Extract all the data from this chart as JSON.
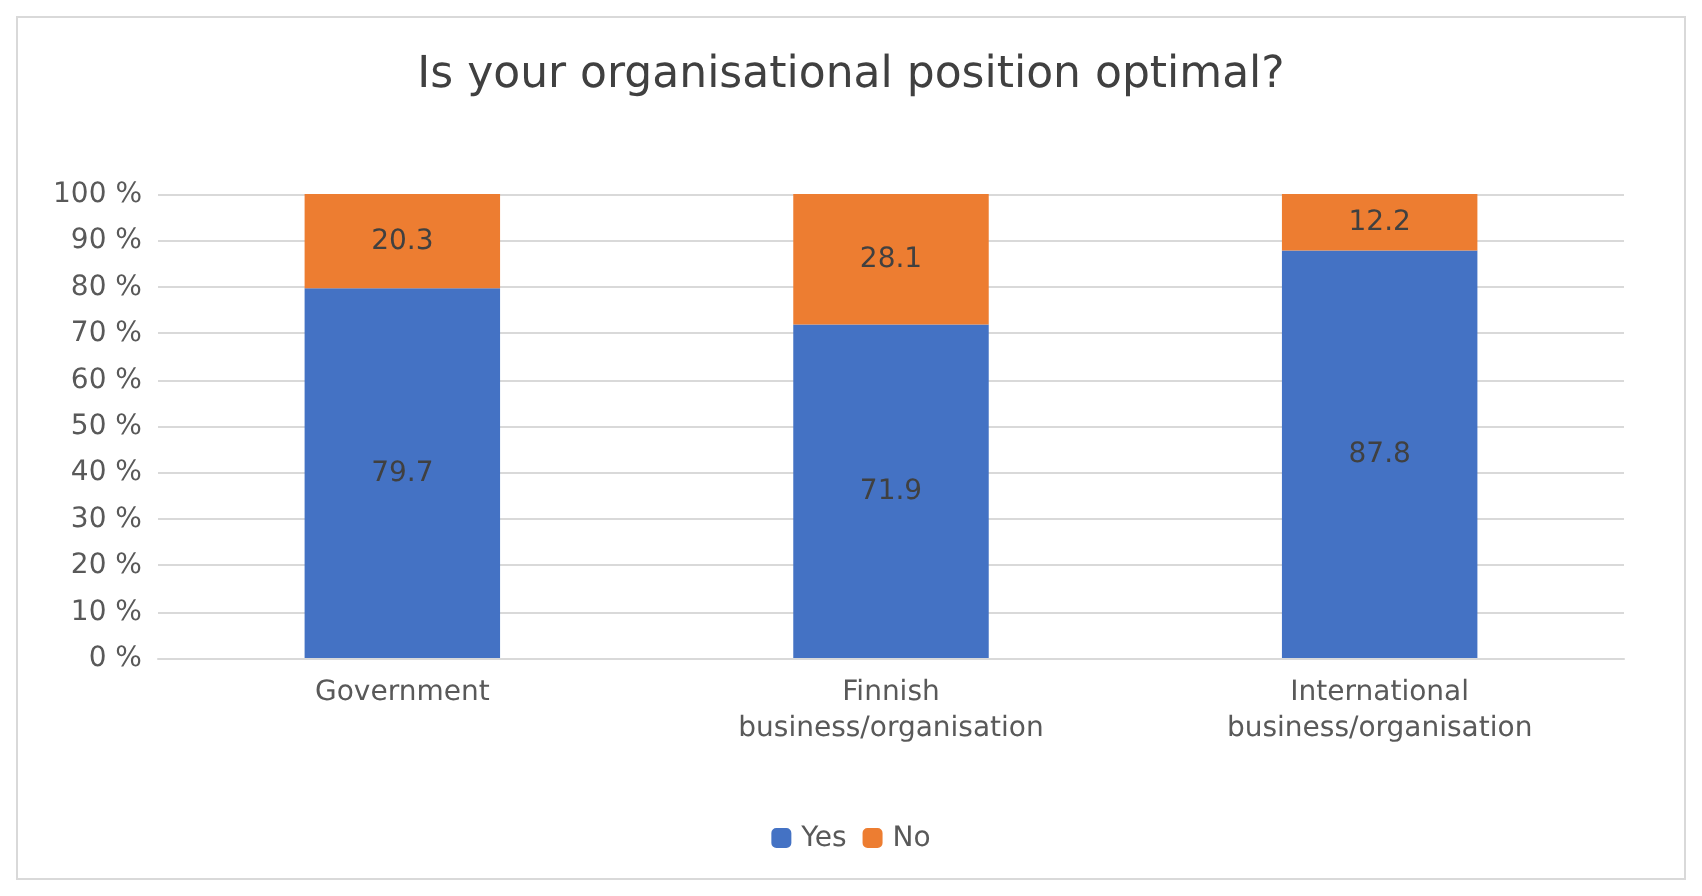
{
  "chart_data": {
    "type": "bar",
    "title": "Is your organisational position optimal?",
    "categories": [
      "Government",
      "Finnish\nbusiness/organisation",
      "International\nbusiness/organisation"
    ],
    "series": [
      {
        "name": "Yes",
        "color": "#4472c4",
        "values": [
          79.7,
          71.9,
          87.8
        ]
      },
      {
        "name": "No",
        "color": "#ed7d31",
        "values": [
          20.3,
          28.1,
          12.2
        ]
      }
    ],
    "stacked": true,
    "ylim": [
      0,
      100
    ],
    "yticks": [
      {
        "value": 0,
        "label": "0 %"
      },
      {
        "value": 10,
        "label": "10 %"
      },
      {
        "value": 20,
        "label": "20 %"
      },
      {
        "value": 30,
        "label": "30 %"
      },
      {
        "value": 40,
        "label": "40 %"
      },
      {
        "value": 50,
        "label": "50 %"
      },
      {
        "value": 60,
        "label": "60 %"
      },
      {
        "value": 70,
        "label": "70 %"
      },
      {
        "value": 80,
        "label": "80 %"
      },
      {
        "value": 90,
        "label": "90 %"
      },
      {
        "value": 100,
        "label": "100 %"
      }
    ],
    "grid": "y",
    "legend": "bottom",
    "data_labels": true
  }
}
